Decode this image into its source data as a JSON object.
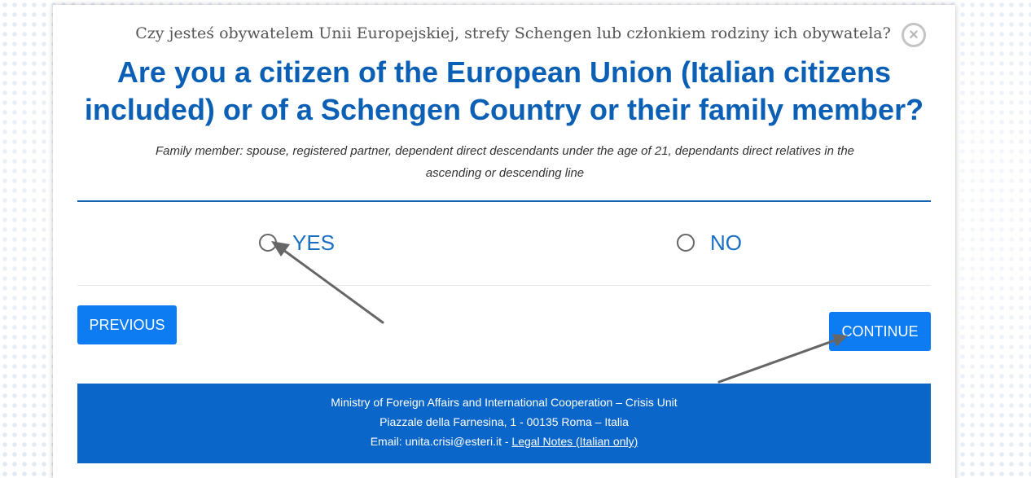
{
  "dialog": {
    "polish_question": "Czy jesteś obywatelem Unii Europejskiej, strefy Schengen lub członkiem rodziny ich obywatela?",
    "question_line1": "Are you a citizen of the European Union (Italian citizens",
    "question_line2": "included) or of a Schengen Country or their family member?",
    "family_note_line1": "Family member: spouse, registered partner, dependent direct descendants under the age of 21, dependants direct relatives in the",
    "family_note_line2": "ascending or descending line",
    "close_symbol": "×",
    "options": [
      {
        "label": "YES",
        "selected": false
      },
      {
        "label": "NO",
        "selected": false
      }
    ],
    "previous_label": "PREVIOUS",
    "continue_label": "CONTINUE"
  },
  "footer": {
    "line1": "Ministry of Foreign Affairs and International Cooperation – Crisis Unit",
    "line2": "Piazzale della Farnesina, 1 - 00135 Roma – Italia",
    "email_text": "Email: unita.crisi@esteri.it - ",
    "legal_link": "Legal Notes (Italian only)"
  },
  "colors": {
    "heading_blue": "#0b60b5",
    "button_blue": "#0d7cf2",
    "footer_blue": "#0a66c8",
    "annotation_arrow": "#666666"
  },
  "icons": {
    "close": "close-circle-icon",
    "annotation": "arrow-annotation"
  }
}
